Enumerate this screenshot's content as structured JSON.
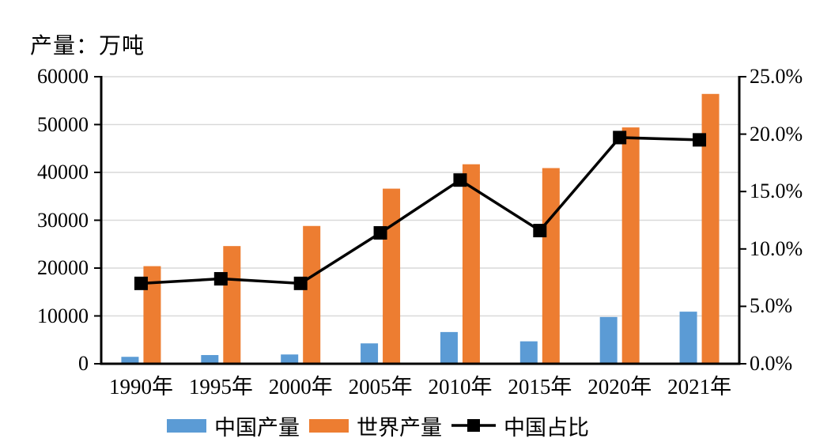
{
  "chart_data": {
    "type": "bar+line",
    "title": "产量：万吨",
    "categories": [
      "1990年",
      "1995年",
      "2000年",
      "2005年",
      "2010年",
      "2015年",
      "2020年",
      "2021年"
    ],
    "series": [
      {
        "name": "中国产量",
        "type": "bar",
        "axis": "left",
        "color": "#5B9BD5",
        "values": [
          1450,
          1820,
          1940,
          4260,
          6630,
          4690,
          9780,
          10890
        ]
      },
      {
        "name": "世界产量",
        "type": "bar",
        "axis": "left",
        "color": "#ED7D31",
        "values": [
          20400,
          24600,
          28800,
          36600,
          41700,
          40900,
          49400,
          56400
        ]
      },
      {
        "name": "中国占比",
        "type": "line",
        "axis": "right",
        "color": "#000000",
        "marker": "square",
        "values": [
          7.0,
          7.4,
          7.0,
          11.4,
          16.0,
          11.6,
          19.7,
          19.5
        ]
      }
    ],
    "axis_left": {
      "min": 0,
      "max": 60000,
      "step": 10000,
      "ticks": [
        "60000",
        "50000",
        "40000",
        "30000",
        "20000",
        "10000",
        "0"
      ]
    },
    "axis_right": {
      "min": 0,
      "max": 25,
      "step": 5,
      "ticks": [
        "25.0%",
        "20.0%",
        "15.0%",
        "10.0%",
        "5.0%",
        "0.0%"
      ]
    },
    "grid": true,
    "legend_position": "bottom",
    "colors": {
      "china_bar": "#5B9BD5",
      "world_bar": "#ED7D31",
      "share_line": "#000000",
      "gridline": "#D9D9D9",
      "axis": "#000000"
    }
  }
}
